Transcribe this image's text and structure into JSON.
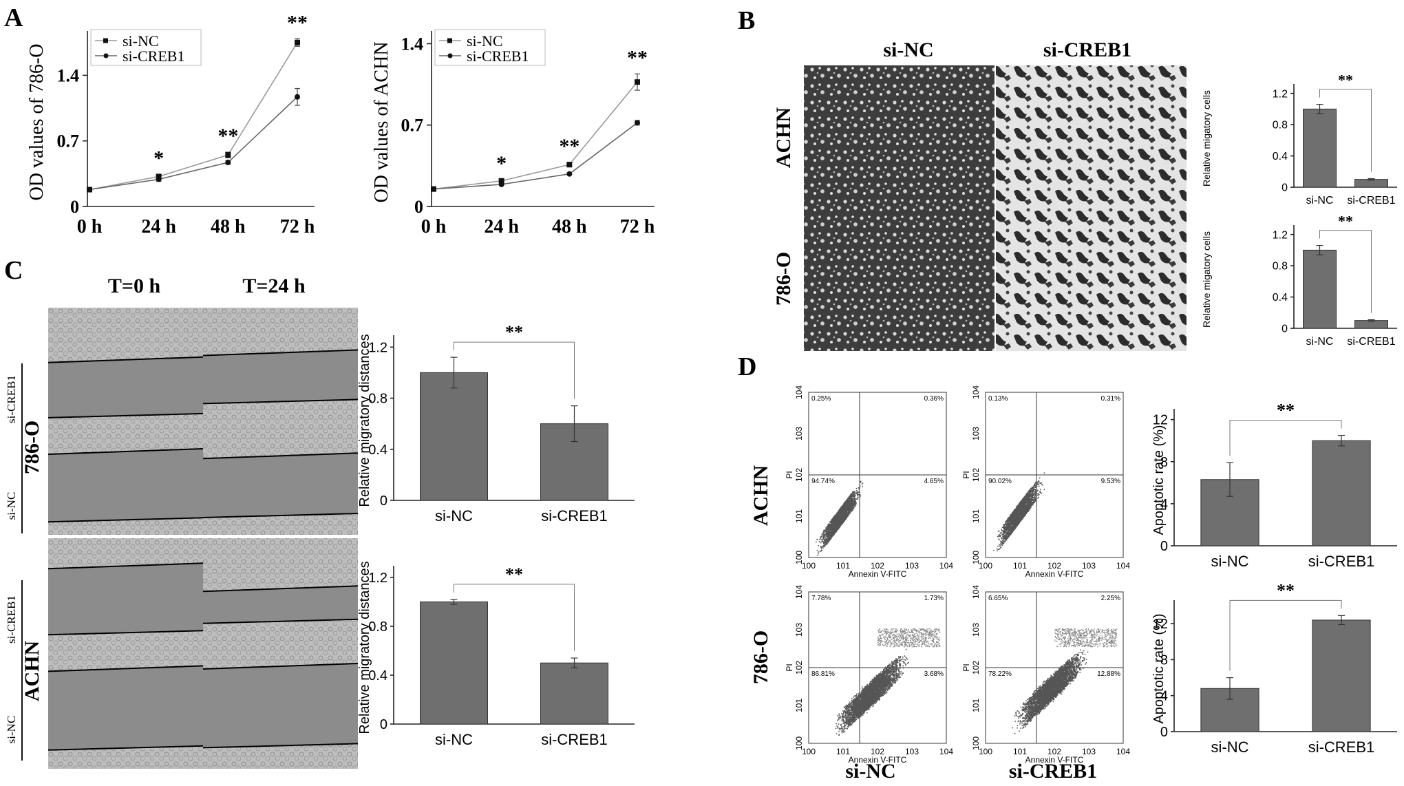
{
  "panels": {
    "A": {
      "label": "A"
    },
    "B": {
      "label": "B",
      "col_labels": [
        "si-NC",
        "si-CREB1"
      ],
      "row_labels": [
        "ACHN",
        "786-O"
      ]
    },
    "C": {
      "label": "C",
      "col_labels": [
        "T=0 h",
        "T=24 h"
      ],
      "row_labels": [
        "786-O",
        "ACHN"
      ],
      "group_top": "si-CREB1",
      "group_bottom": "si-NC"
    },
    "D": {
      "label": "D",
      "col_labels": [
        "si-NC",
        "si-CREB1"
      ],
      "row_labels": [
        "ACHN",
        "786-O"
      ]
    }
  },
  "chart_data": [
    {
      "id": "A1",
      "type": "line",
      "xlabel": "",
      "ylabel": "OD values of 786-O",
      "categories": [
        "0 h",
        "24 h",
        "48 h",
        "72 h"
      ],
      "ylim": [
        0,
        1.8
      ],
      "yticks": [
        "0",
        "0.7",
        "1.4"
      ],
      "series": [
        {
          "name": "si-NC",
          "values": [
            0.18,
            0.32,
            0.55,
            1.75
          ],
          "errors": [
            0.01,
            0.02,
            0.03,
            0.04
          ],
          "marker": "square"
        },
        {
          "name": "si-CREB1",
          "values": [
            0.18,
            0.29,
            0.47,
            1.17
          ],
          "errors": [
            0.01,
            0.02,
            0.02,
            0.09
          ],
          "marker": "circle"
        }
      ],
      "significance": [
        "",
        "*",
        "**",
        "**"
      ],
      "legend": "top-left"
    },
    {
      "id": "A2",
      "type": "line",
      "xlabel": "",
      "ylabel": "OD values of ACHN",
      "categories": [
        "0 h",
        "24 h",
        "48 h",
        "72 h"
      ],
      "ylim": [
        0,
        1.45
      ],
      "yticks": [
        "0",
        "0.7",
        "1.4"
      ],
      "series": [
        {
          "name": "si-NC",
          "values": [
            0.15,
            0.22,
            0.36,
            1.07
          ],
          "errors": [
            0.01,
            0.01,
            0.02,
            0.07
          ],
          "marker": "square"
        },
        {
          "name": "si-CREB1",
          "values": [
            0.15,
            0.19,
            0.28,
            0.72
          ],
          "errors": [
            0.01,
            0.01,
            0.01,
            0.02
          ],
          "marker": "circle"
        }
      ],
      "significance": [
        "",
        "*",
        "**",
        "**"
      ],
      "legend": "top-left"
    },
    {
      "id": "B1",
      "type": "bar",
      "ylabel": "Relative migatory cells",
      "categories": [
        "si-NC",
        "si-CREB1"
      ],
      "values": [
        1.0,
        0.1
      ],
      "errors": [
        0.06,
        0.01
      ],
      "ylim": [
        0,
        1.25
      ],
      "yticks": [
        "0",
        "0.4",
        "0.8",
        "1.2"
      ],
      "significance": "**"
    },
    {
      "id": "B2",
      "type": "bar",
      "ylabel": "Relative migatory cells",
      "categories": [
        "si-NC",
        "si-CREB1"
      ],
      "values": [
        1.0,
        0.1
      ],
      "errors": [
        0.06,
        0.01
      ],
      "ylim": [
        0,
        1.25
      ],
      "yticks": [
        "0",
        "0.4",
        "0.8",
        "1.2"
      ],
      "significance": "**"
    },
    {
      "id": "C1",
      "type": "bar",
      "ylabel": "Relative migratory distances",
      "categories": [
        "si-NC",
        "si-CREB1"
      ],
      "values": [
        1.0,
        0.6
      ],
      "errors": [
        0.12,
        0.14
      ],
      "ylim": [
        0,
        1.25
      ],
      "yticks": [
        "0",
        "0.4",
        "0.8",
        "1.2"
      ],
      "significance": "**"
    },
    {
      "id": "C2",
      "type": "bar",
      "ylabel": "Relative migratory distances",
      "categories": [
        "si-NC",
        "si-CREB1"
      ],
      "values": [
        1.0,
        0.5
      ],
      "errors": [
        0.02,
        0.04
      ],
      "ylim": [
        0,
        1.25
      ],
      "yticks": [
        "0",
        "0.4",
        "0.8",
        "1.2"
      ],
      "significance": "**"
    },
    {
      "id": "D3",
      "type": "bar",
      "ylabel": "Apoptotic rate (%)",
      "categories": [
        "si-NC",
        "si-CREB1"
      ],
      "values": [
        6.3,
        10.0
      ],
      "errors": [
        1.6,
        0.5
      ],
      "ylim": [
        0,
        12.5
      ],
      "yticks": [
        "0",
        "4",
        "8",
        "12"
      ],
      "significance": "**"
    },
    {
      "id": "D4",
      "type": "bar",
      "ylabel": "Apoptotic rate (%)",
      "categories": [
        "si-NC",
        "si-CREB1"
      ],
      "values": [
        4.8,
        12.4
      ],
      "errors": [
        1.2,
        0.5
      ],
      "ylim": [
        0,
        14
      ],
      "yticks": [
        "0",
        "4",
        "8",
        "12"
      ],
      "significance": "**"
    },
    {
      "id": "F1",
      "type": "scatter",
      "xlabel": "Annexin V-FITC",
      "ylabel": "PI",
      "xticks": [
        "100",
        "101",
        "102",
        "103",
        "104"
      ],
      "yticks": [
        "100",
        "101",
        "102",
        "103",
        "104"
      ],
      "quadrants": [
        "0.25%",
        "0.36%",
        "94.74%",
        "4.65%"
      ]
    },
    {
      "id": "F2",
      "type": "scatter",
      "xlabel": "Annexin V-FITC",
      "ylabel": "PI",
      "xticks": [
        "100",
        "101",
        "102",
        "103",
        "104"
      ],
      "yticks": [
        "100",
        "101",
        "102",
        "103",
        "104"
      ],
      "quadrants": [
        "0.13%",
        "0.31%",
        "90.02%",
        "9.53%"
      ]
    },
    {
      "id": "F3",
      "type": "scatter",
      "xlabel": "Annexin V-FITC",
      "ylabel": "PI",
      "xticks": [
        "100",
        "101",
        "102",
        "103",
        "104"
      ],
      "yticks": [
        "100",
        "101",
        "102",
        "103",
        "104"
      ],
      "quadrants": [
        "7.78%",
        "1.73%",
        "86.81%",
        "3.68%"
      ]
    },
    {
      "id": "F4",
      "type": "scatter",
      "xlabel": "Annexin V-FITC",
      "ylabel": "PI",
      "xticks": [
        "100",
        "101",
        "102",
        "103",
        "104"
      ],
      "yticks": [
        "100",
        "101",
        "102",
        "103",
        "104"
      ],
      "quadrants": [
        "6.65%",
        "2.25%",
        "78.22%",
        "12.88%"
      ]
    }
  ]
}
